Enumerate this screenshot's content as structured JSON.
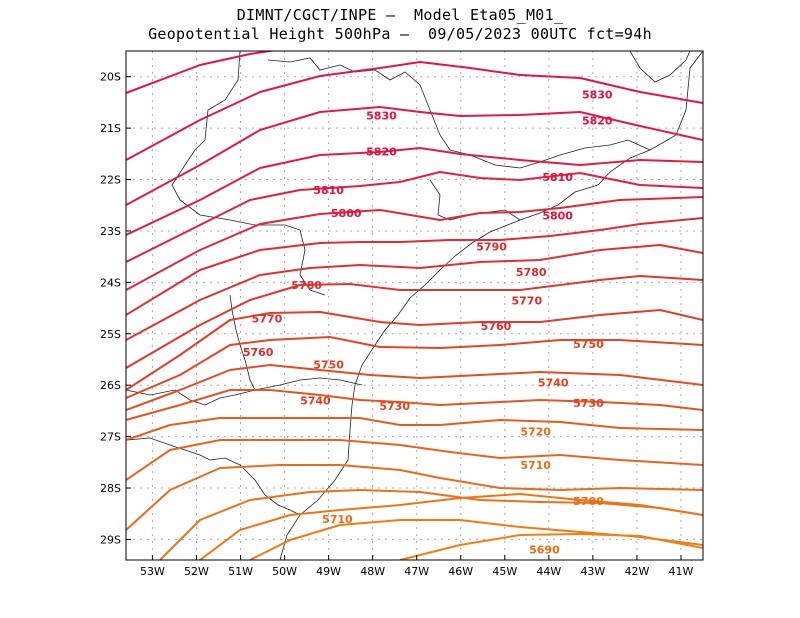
{
  "title": {
    "line1": "DIMNT/CGCT/INPE —  Model Eta05_M01_",
    "line2": "Geopotential Height 500hPa —  09/05/2023 00UTC fct=94h"
  },
  "chart_data": {
    "type": "contour",
    "lon_range": [
      -53.6,
      -40.5
    ],
    "lat_range": [
      -29.4,
      -19.5
    ],
    "lon_ticks": [
      "53W",
      "52W",
      "51W",
      "50W",
      "49W",
      "48W",
      "47W",
      "46W",
      "45W",
      "44W",
      "43W",
      "42W",
      "41W"
    ],
    "lat_ticks": [
      "20S",
      "21S",
      "22S",
      "23S",
      "24S",
      "25S",
      "26S",
      "27S",
      "28S",
      "29S"
    ],
    "grid": true,
    "contour_labels": [
      {
        "text": "5830",
        "lon": -47.8,
        "lat": -20.75
      },
      {
        "text": "5830",
        "lon": -42.9,
        "lat": -20.35
      },
      {
        "text": "5820",
        "lon": -47.8,
        "lat": -21.45
      },
      {
        "text": "5820",
        "lon": -42.9,
        "lat": -20.85
      },
      {
        "text": "5810",
        "lon": -49.0,
        "lat": -22.2
      },
      {
        "text": "5810",
        "lon": -43.8,
        "lat": -21.95
      },
      {
        "text": "5800",
        "lon": -48.6,
        "lat": -22.65
      },
      {
        "text": "5800",
        "lon": -43.8,
        "lat": -22.7
      },
      {
        "text": "5790",
        "lon": -45.3,
        "lat": -23.3
      },
      {
        "text": "5780",
        "lon": -49.5,
        "lat": -24.05
      },
      {
        "text": "5780",
        "lon": -44.4,
        "lat": -23.8
      },
      {
        "text": "5770",
        "lon": -50.4,
        "lat": -24.7
      },
      {
        "text": "5770",
        "lon": -44.5,
        "lat": -24.35
      },
      {
        "text": "5760",
        "lon": -50.6,
        "lat": -25.35
      },
      {
        "text": "5760",
        "lon": -45.2,
        "lat": -24.85
      },
      {
        "text": "5750",
        "lon": -49.0,
        "lat": -25.6
      },
      {
        "text": "5750",
        "lon": -43.1,
        "lat": -25.2
      },
      {
        "text": "5740",
        "lon": -49.3,
        "lat": -26.3
      },
      {
        "text": "5740",
        "lon": -43.9,
        "lat": -25.95
      },
      {
        "text": "5730",
        "lon": -47.5,
        "lat": -26.4
      },
      {
        "text": "5730",
        "lon": -43.1,
        "lat": -26.35
      },
      {
        "text": "5720",
        "lon": -44.3,
        "lat": -26.9
      },
      {
        "text": "5710",
        "lon": -48.8,
        "lat": -28.6
      },
      {
        "text": "5710",
        "lon": -44.3,
        "lat": -27.55
      },
      {
        "text": "5700",
        "lon": -43.1,
        "lat": -28.25
      },
      {
        "text": "5690",
        "lon": -44.1,
        "lat": -29.2
      }
    ]
  }
}
